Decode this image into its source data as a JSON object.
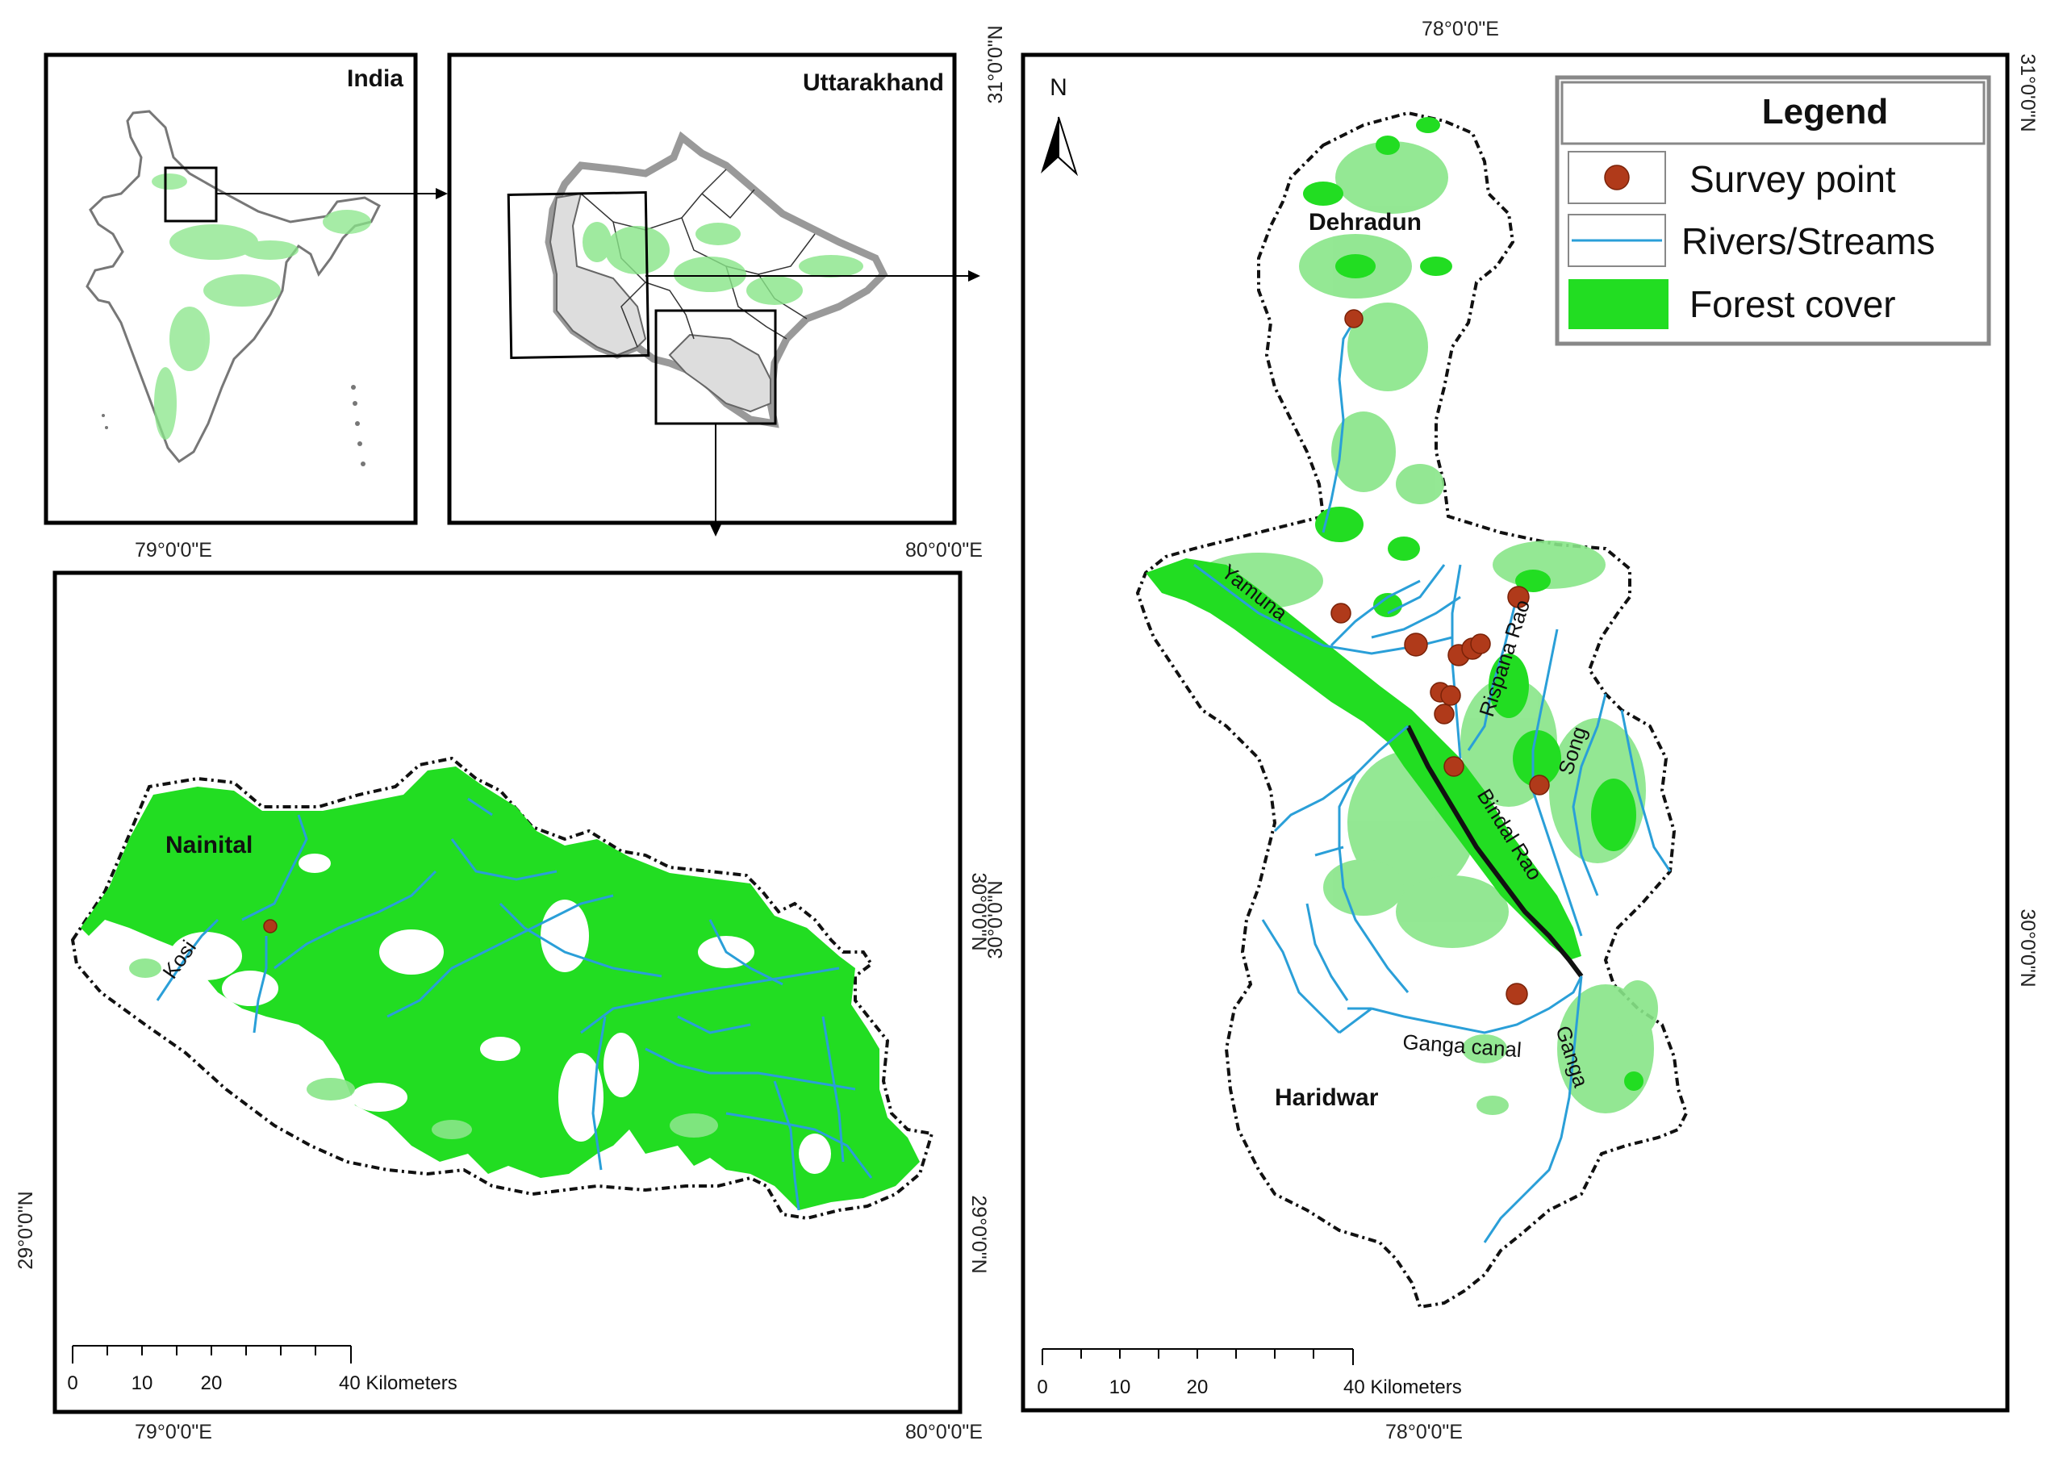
{
  "panels": {
    "india": {
      "title": "India"
    },
    "uttarakhand": {
      "title": "Uttarakhand"
    },
    "nainital": {
      "place_label": "Nainital",
      "river_labels": [
        "Kosi"
      ],
      "top_lon_labels": [
        "79°0'0\"E",
        "80°0'0\"E"
      ],
      "bottom_lon_labels": [
        "79°0'0\"E",
        "80°0'0\"E"
      ],
      "left_lat_labels": [
        "29°0'0\"N"
      ],
      "right_lat_labels": [
        "30°0'0\"N",
        "29°0'0\"N"
      ],
      "scale": {
        "ticks": [
          "0",
          "10",
          "20",
          "40 Kilometers"
        ]
      }
    },
    "dehradun_haridwar": {
      "place_labels": [
        "Dehradun",
        "Haridwar"
      ],
      "river_labels": [
        "Yamuna",
        "Rispana Rao",
        "Song",
        "Bindal Rao",
        "Ganga canal",
        "Ganga"
      ],
      "north_arrow": "N",
      "top_lon_label": "78°0'0\"E",
      "bottom_lon_label": "78°0'0\"E",
      "left_lat_labels": [
        "31°0'0\"N",
        "30°0'0\"N"
      ],
      "right_lat_labels": [
        "31°0'0\"N",
        "30°0'0\"N"
      ],
      "scale": {
        "ticks": [
          "0",
          "10",
          "20",
          "40 Kilometers"
        ]
      }
    }
  },
  "legend": {
    "title": "Legend",
    "items": [
      {
        "label": "Survey point",
        "color": "#b03a1a"
      },
      {
        "label": "Rivers/Streams",
        "color": "#2a9fd8"
      },
      {
        "label": "Forest cover",
        "color": "#22dd22"
      }
    ]
  }
}
